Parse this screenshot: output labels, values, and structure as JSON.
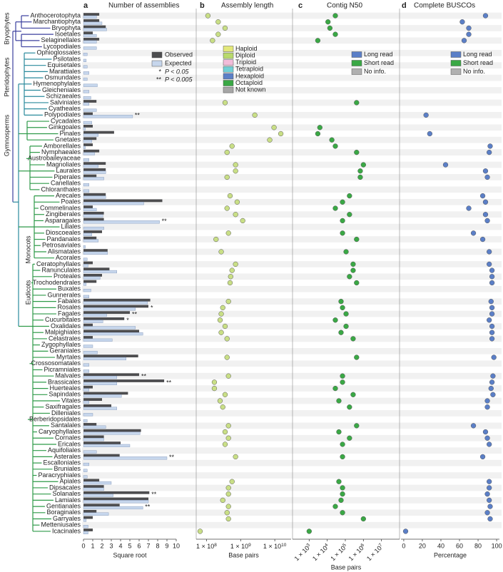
{
  "chart_data": [
    {
      "type": "bar",
      "panel": "a",
      "title": "Number of assemblies",
      "xlabel": "Square root",
      "categories": [
        "Anthocerotophyta",
        "Marchantiophyta",
        "Bryophyta",
        "Isoetales",
        "Selaginellales",
        "Lycopodiales",
        "Ophioglossales",
        "Psilotales",
        "Equisetales",
        "Marattiales",
        "Osmundales",
        "Hymenophylales",
        "Gleicheniales",
        "Schizaeales",
        "Salviniales",
        "Cyatheales",
        "Polypodiales",
        "Cycadales",
        "Ginkgoales",
        "Pinales",
        "Gnetales",
        "Amborellales",
        "Nymphaeales",
        "Austrobaileyaceae",
        "Magnoliales",
        "Laurales",
        "Piperales",
        "Canellales",
        "Chloranthales",
        "Arecales",
        "Poales",
        "Commelinales",
        "Zingiberales",
        "Asparagales",
        "Liliales",
        "Dioscoeales",
        "Pandanales",
        "Petrosaviales",
        "Alismatales",
        "Acorales",
        "Ceratophyllales",
        "Ranunculales",
        "Proteales",
        "Trochodendrales",
        "Buxales",
        "Gunnerales",
        "Fabales",
        "Rosales",
        "Fagales",
        "Cucurbitales",
        "Oxalidales",
        "Malpighiales",
        "Celastrales",
        "Zygophyllales",
        "Geraniales",
        "Myrtales",
        "Crossosomatales",
        "Picramniales",
        "Malvales",
        "Brassicales",
        "Huerteales",
        "Sapindales",
        "Vitales",
        "Saxifragales",
        "Dilleniales",
        "Berberidopsidales",
        "Santalales",
        "Caryophyllales",
        "Cornales",
        "Ericales",
        "Aquifoliales",
        "Asterales",
        "Escalloniales",
        "Bruniales",
        "Paracryphiales",
        "Apiales",
        "Dipsacales",
        "Solanales",
        "Lamiales",
        "Gentianales",
        "Boraginales",
        "Garryales",
        "Metteniusales",
        "Icacinales"
      ],
      "series": [
        {
          "name": "Observed",
          "color": "#4d4d4f",
          "values": [
            1.7,
            1.7,
            2.4,
            1.0,
            1.7,
            0,
            0,
            0,
            0,
            0,
            0,
            0,
            0,
            0,
            1.4,
            0,
            1.0,
            0,
            1.0,
            3.3,
            1.4,
            1.0,
            1.7,
            0,
            2.4,
            2.4,
            1.4,
            0,
            0,
            2.4,
            8.5,
            1.0,
            2.2,
            2.2,
            0,
            2.0,
            1.4,
            0,
            2.6,
            0,
            1.0,
            2.8,
            2.0,
            1.4,
            0,
            0,
            7.2,
            7.0,
            5.0,
            4.4,
            1.0,
            6.0,
            1.0,
            0,
            0,
            5.9,
            0,
            0,
            6.0,
            8.7,
            1.0,
            4.8,
            2.0,
            3.0,
            0,
            0,
            1.4,
            6.2,
            2.2,
            4.0,
            0,
            3.9,
            0,
            0,
            0,
            1.7,
            2.2,
            7.1,
            7.0,
            3.9,
            1.4,
            1.0,
            0,
            1.0
          ]
        },
        {
          "name": "Expected",
          "color": "#c6d6ec",
          "values": [
            1.4,
            2.0,
            2.5,
            1.4,
            1.4,
            1.4,
            0.4,
            0.3,
            0.4,
            0.6,
            0.4,
            1.5,
            0.6,
            0.8,
            0.6,
            1.4,
            5.3,
            0.9,
            0.2,
            1.6,
            0.9,
            0.2,
            1.2,
            0.6,
            1.6,
            2.4,
            2.2,
            0.6,
            0.6,
            2.4,
            6.5,
            1.4,
            2.1,
            8.2,
            2.2,
            0.9,
            1.6,
            0.2,
            2.6,
            0.4,
            0.5,
            3.6,
            1.8,
            0.3,
            0.8,
            0.6,
            6.9,
            5.6,
            2.5,
            2.1,
            5.6,
            6.4,
            3.1,
            1.0,
            1.5,
            4.6,
            0.6,
            0.6,
            3.6,
            3.6,
            0.6,
            4.1,
            0.6,
            3.6,
            1.0,
            0.4,
            2.4,
            6.1,
            2.2,
            5.0,
            1.4,
            9.0,
            0.6,
            0.4,
            0.4,
            3.0,
            2.2,
            3.2,
            7.0,
            6.4,
            2.7,
            0.3,
            0.5,
            0.5
          ]
        }
      ],
      "significance": [
        null,
        null,
        null,
        null,
        null,
        null,
        null,
        null,
        null,
        null,
        null,
        null,
        null,
        null,
        null,
        null,
        "**",
        null,
        null,
        null,
        null,
        null,
        null,
        null,
        null,
        null,
        null,
        null,
        null,
        null,
        null,
        null,
        null,
        "**",
        null,
        null,
        null,
        null,
        null,
        null,
        null,
        null,
        null,
        null,
        null,
        null,
        null,
        "*",
        "**",
        "*",
        null,
        null,
        null,
        null,
        null,
        null,
        null,
        null,
        "**",
        "**",
        null,
        null,
        null,
        null,
        null,
        null,
        null,
        null,
        null,
        null,
        null,
        "**",
        null,
        null,
        null,
        null,
        null,
        "**",
        null,
        "**",
        null,
        null,
        null,
        null
      ],
      "significance_legend": [
        {
          "symbol": "*",
          "label": "P < 0.05"
        },
        {
          "symbol": "**",
          "label": "P < 0.005"
        }
      ],
      "significance_color": "#e8312a",
      "muted_label_color": "#9a9a9a",
      "clades": [
        "Bryophytes",
        "Pteridophytes",
        "Gymnosperms",
        "Monocots",
        "Eudicots"
      ],
      "xlim": [
        0,
        10
      ],
      "xticks": [
        0,
        1,
        2,
        3,
        4,
        5,
        6,
        7,
        8,
        9,
        10
      ]
    },
    {
      "type": "dot",
      "panel": "b",
      "title": "Assembly length",
      "xlabel": "Base pairs",
      "log_scale": true,
      "color": "#c9df86",
      "values": [
        110000000.0,
        220000000.0,
        350000000.0,
        220000000.0,
        150000000.0,
        null,
        null,
        null,
        null,
        null,
        null,
        null,
        null,
        null,
        350000000.0,
        null,
        2600000000.0,
        null,
        9500000000.0,
        15000000000.0,
        7100000000.0,
        560000000.0,
        400000000.0,
        null,
        710000000.0,
        710000000.0,
        400000000.0,
        null,
        null,
        490000000.0,
        790000000.0,
        400000000.0,
        710000000.0,
        1150000000.0,
        null,
        440000000.0,
        190000000.0,
        null,
        270000000.0,
        null,
        710000000.0,
        560000000.0,
        510000000.0,
        490000000.0,
        null,
        null,
        440000000.0,
        300000000.0,
        270000000.0,
        250000000.0,
        350000000.0,
        270000000.0,
        400000000.0,
        null,
        null,
        400000000.0,
        null,
        null,
        440000000.0,
        170000000.0,
        170000000.0,
        350000000.0,
        250000000.0,
        300000000.0,
        null,
        null,
        440000000.0,
        350000000.0,
        440000000.0,
        350000000.0,
        null,
        710000000.0,
        null,
        null,
        null,
        560000000.0,
        440000000.0,
        440000000.0,
        300000000.0,
        440000000.0,
        400000000.0,
        440000000.0,
        null,
        65000000.0
      ],
      "legend": [
        {
          "name": "Haploid",
          "color": "#e3e87a"
        },
        {
          "name": "Diploid",
          "color": "#b8d96c"
        },
        {
          "name": "Triploid",
          "color": "#f2bcd9"
        },
        {
          "name": "Tetraploid",
          "color": "#72d0d6"
        },
        {
          "name": "Hexaploid",
          "color": "#5b7fc7"
        },
        {
          "name": "Octaploid",
          "color": "#3aa845"
        },
        {
          "name": "Not known",
          "color": "#a6a6a6"
        }
      ],
      "xlim": [
        50000000.0,
        30000000000.0
      ],
      "xticks": [
        {
          "value": 100000000,
          "label": "1 × 10",
          "exponent": "8"
        },
        {
          "value": 1000000000,
          "label": "1 × 10",
          "exponent": "9"
        },
        {
          "value": 10000000000,
          "label": "1 × 10",
          "exponent": "10"
        }
      ]
    },
    {
      "type": "dot",
      "panel": "c",
      "title": "Contig N50",
      "xlabel": "Base pairs",
      "log_scale": true,
      "color": "#3aa845",
      "values": [
        28000.0,
        11000.0,
        14000.0,
        28000.0,
        3000.0,
        null,
        null,
        null,
        null,
        null,
        null,
        null,
        null,
        null,
        420000.0,
        null,
        null,
        null,
        3900.0,
        3000.0,
        18000.0,
        28000.0,
        420000.0,
        null,
        1000000.0,
        670000.0,
        670000.0,
        null,
        null,
        170000.0,
        70000.0,
        28000.0,
        170000.0,
        70000.0,
        null,
        70000.0,
        420000.0,
        null,
        110000.0,
        null,
        270000.0,
        270000.0,
        170000.0,
        420000.0,
        null,
        null,
        58000.0,
        70000.0,
        110000.0,
        28000.0,
        110000.0,
        58000.0,
        270000.0,
        null,
        null,
        420000.0,
        null,
        null,
        70000.0,
        70000.0,
        28000.0,
        270000.0,
        44000.0,
        170000.0,
        null,
        null,
        420000.0,
        44000.0,
        170000.0,
        70000.0,
        null,
        70000.0,
        null,
        null,
        null,
        44000.0,
        70000.0,
        70000.0,
        58000.0,
        28000.0,
        70000.0,
        1000000.0,
        null,
        1000.0
      ],
      "legend": [
        {
          "name": "Long read",
          "color": "#5b7fc7"
        },
        {
          "name": "Short read",
          "color": "#3aa845"
        },
        {
          "name": "No info.",
          "color": "#b0b0b0"
        }
      ],
      "xlim": [
        120,
        100000000.0
      ],
      "xticks": [
        {
          "value": 1000,
          "label": "1 × 10",
          "exponent": "3"
        },
        {
          "value": 10000,
          "label": "1 × 10",
          "exponent": "4"
        },
        {
          "value": 100000,
          "label": "1 × 10",
          "exponent": "5"
        },
        {
          "value": 1000000,
          "label": "1 × 10",
          "exponent": "6"
        },
        {
          "value": 10000000,
          "label": "1 × 10",
          "exponent": "7"
        }
      ]
    },
    {
      "type": "dot",
      "panel": "d",
      "title": "Complete BUSCOs",
      "xlabel": "Percentage",
      "log_scale": false,
      "color": "#5b7fc7",
      "values": [
        88,
        63,
        70,
        70,
        65,
        null,
        null,
        null,
        null,
        null,
        null,
        null,
        null,
        null,
        null,
        null,
        24,
        null,
        null,
        28,
        null,
        93,
        92,
        null,
        45,
        88,
        90,
        null,
        null,
        85,
        88,
        70,
        88,
        90,
        null,
        75,
        85,
        null,
        92,
        null,
        92,
        95,
        95,
        95,
        null,
        null,
        94,
        95,
        95,
        92,
        95,
        95,
        95,
        null,
        null,
        97,
        null,
        null,
        96,
        95,
        94,
        96,
        90,
        90,
        null,
        null,
        75,
        88,
        90,
        92,
        null,
        85,
        null,
        null,
        null,
        92,
        92,
        90,
        92,
        93,
        90,
        93,
        null,
        2
      ],
      "legend": [
        {
          "name": "Long read",
          "color": "#5b7fc7"
        },
        {
          "name": "Short read",
          "color": "#3aa845"
        },
        {
          "name": "No info.",
          "color": "#b0b0b0"
        }
      ],
      "xlim": [
        -3,
        103
      ],
      "xticks": [
        0,
        20,
        40,
        60,
        80,
        100
      ]
    }
  ]
}
